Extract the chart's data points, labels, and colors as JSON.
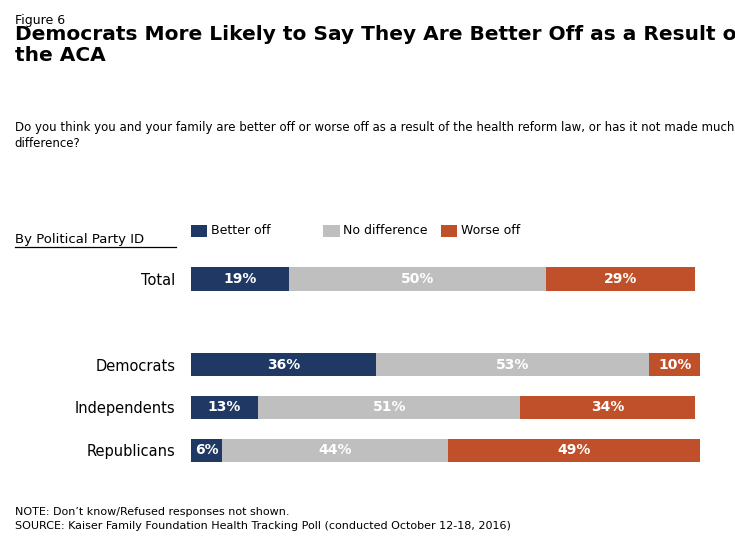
{
  "figure_label": "Figure 6",
  "title": "Democrats More Likely to Say They Are Better Off as a Result of\nthe ACA",
  "subtitle": "Do you think you and your family are better off or worse off as a result of the health reform law, or has it not made much difference?",
  "categories": [
    "Total",
    "Democrats",
    "Independents",
    "Republicans"
  ],
  "better_off": [
    19,
    36,
    13,
    6
  ],
  "no_difference": [
    50,
    53,
    51,
    44
  ],
  "worse_off": [
    29,
    10,
    34,
    49
  ],
  "color_better": "#1F3864",
  "color_no_diff": "#BFBFBF",
  "color_worse": "#C0502A",
  "legend_labels": [
    "Better off",
    "No difference",
    "Worse off"
  ],
  "section_label": "By Political Party ID",
  "note": "NOTE: Don’t know/Refused responses not shown.",
  "source": "SOURCE: Kaiser Family Foundation Health Tracking Poll (conducted October 12-18, 2016)",
  "bar_height": 0.55,
  "background_color": "#FFFFFF"
}
